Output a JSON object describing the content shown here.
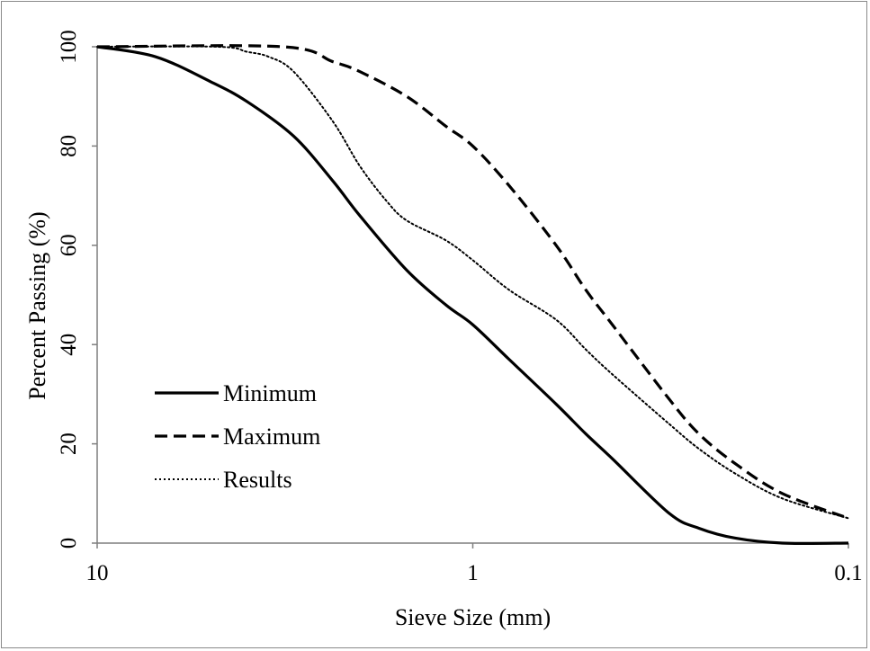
{
  "chart_data": {
    "type": "line",
    "title": "",
    "xlabel": "Sieve Size (mm)",
    "ylabel": "Percent Passing (%)",
    "x_scale": "log",
    "x_reversed": true,
    "xlim": [
      10,
      0.1
    ],
    "ylim": [
      0,
      100
    ],
    "x_ticks": [
      10,
      1,
      0.1
    ],
    "x_tick_labels": [
      "10",
      "1",
      "0.1"
    ],
    "y_ticks": [
      0,
      20,
      40,
      60,
      80,
      100
    ],
    "y_tick_labels": [
      "0",
      "20",
      "40",
      "60",
      "80",
      "100"
    ],
    "grid": false,
    "legend_position": "bottom-left",
    "series": [
      {
        "name": "Minimum",
        "style": "solid",
        "color": "#000000",
        "x": [
          10,
          7,
          5,
          4,
          3,
          2.36,
          2,
          1.5,
          1.18,
          1,
          0.8,
          0.6,
          0.5,
          0.425,
          0.3,
          0.25,
          0.2,
          0.15,
          0.1
        ],
        "y": [
          100,
          98,
          93,
          89,
          82,
          73,
          66,
          55,
          48,
          44,
          37,
          28,
          22,
          17,
          6,
          3,
          1,
          0,
          0
        ]
      },
      {
        "name": "Maximum",
        "style": "dashed",
        "color": "#000000",
        "x": [
          10,
          3.2,
          2.36,
          2,
          1.5,
          1.18,
          1,
          0.8,
          0.6,
          0.5,
          0.425,
          0.3,
          0.25,
          0.2,
          0.15,
          0.1
        ],
        "y": [
          100,
          100,
          97,
          95,
          90,
          84,
          80,
          72,
          60,
          51,
          44,
          29,
          22,
          16,
          10,
          5
        ]
      },
      {
        "name": "Results",
        "style": "dotted",
        "color": "#000000",
        "x": [
          10,
          4.75,
          4,
          3.5,
          3,
          2.36,
          2,
          1.7,
          1.5,
          1.18,
          1,
          0.8,
          0.6,
          0.5,
          0.425,
          0.3,
          0.25,
          0.2,
          0.15,
          0.1
        ],
        "y": [
          100,
          100,
          99,
          98,
          95,
          85,
          76,
          69,
          65,
          61,
          57,
          51,
          45,
          39,
          34,
          24,
          19,
          14,
          9,
          5
        ]
      }
    ]
  }
}
